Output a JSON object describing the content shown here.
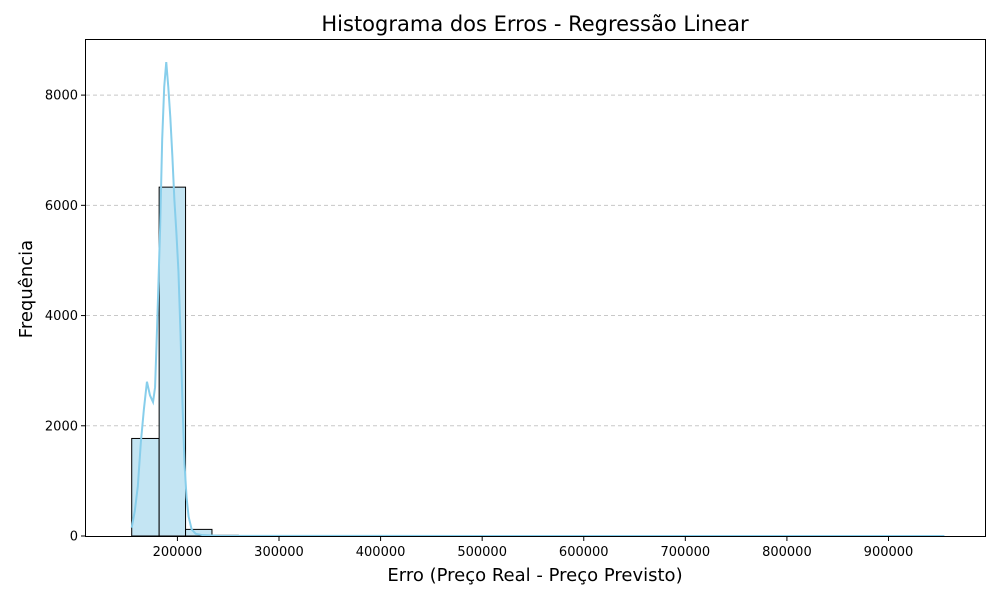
{
  "chart_data": {
    "type": "bar",
    "title": "Histograma dos Erros - Regressão Linear",
    "xlabel": "Erro (Preço Real - Preço Previsto)",
    "ylabel": "Frequência",
    "xlim": [
      110000,
      995000
    ],
    "ylim": [
      0,
      9000
    ],
    "grid": "y",
    "x_ticks": [
      200000,
      300000,
      400000,
      500000,
      600000,
      700000,
      800000,
      900000
    ],
    "x_tick_labels": [
      "200000",
      "300000",
      "400000",
      "500000",
      "600000",
      "700000",
      "800000",
      "900000"
    ],
    "y_ticks": [
      0,
      2000,
      4000,
      6000,
      8000
    ],
    "y_tick_labels": [
      "0",
      "2000",
      "4000",
      "6000",
      "8000"
    ],
    "bins": [
      {
        "x0": 155000,
        "x1": 182000,
        "count": 1770
      },
      {
        "x0": 182000,
        "x1": 208000,
        "count": 6330
      },
      {
        "x0": 208000,
        "x1": 234000,
        "count": 120
      },
      {
        "x0": 234000,
        "x1": 260000,
        "count": 12
      },
      {
        "x0": 260000,
        "x1": 286000,
        "count": 4
      },
      {
        "x0": 286000,
        "x1": 312000,
        "count": 2
      },
      {
        "x0": 312000,
        "x1": 338000,
        "count": 1
      },
      {
        "x0": 338000,
        "x1": 364000,
        "count": 1
      },
      {
        "x0": 364000,
        "x1": 390000,
        "count": 1
      },
      {
        "x0": 390000,
        "x1": 416000,
        "count": 1
      },
      {
        "x0": 416000,
        "x1": 442000,
        "count": 1
      },
      {
        "x0": 442000,
        "x1": 468000,
        "count": 1
      },
      {
        "x0": 468000,
        "x1": 494000,
        "count": 1
      },
      {
        "x0": 494000,
        "x1": 520000,
        "count": 1
      },
      {
        "x0": 520000,
        "x1": 546000,
        "count": 1
      },
      {
        "x0": 546000,
        "x1": 572000,
        "count": 1
      },
      {
        "x0": 572000,
        "x1": 598000,
        "count": 1
      },
      {
        "x0": 598000,
        "x1": 624000,
        "count": 1
      },
      {
        "x0": 624000,
        "x1": 650000,
        "count": 1
      },
      {
        "x0": 650000,
        "x1": 676000,
        "count": 1
      },
      {
        "x0": 676000,
        "x1": 702000,
        "count": 1
      },
      {
        "x0": 702000,
        "x1": 728000,
        "count": 1
      },
      {
        "x0": 728000,
        "x1": 754000,
        "count": 1
      },
      {
        "x0": 754000,
        "x1": 780000,
        "count": 1
      },
      {
        "x0": 780000,
        "x1": 806000,
        "count": 1
      },
      {
        "x0": 806000,
        "x1": 832000,
        "count": 1
      },
      {
        "x0": 832000,
        "x1": 858000,
        "count": 1
      },
      {
        "x0": 858000,
        "x1": 884000,
        "count": 1
      },
      {
        "x0": 884000,
        "x1": 910000,
        "count": 1
      },
      {
        "x0": 910000,
        "x1": 936000,
        "count": 1
      }
    ],
    "kde_curve": {
      "x": [
        155000,
        158000,
        161000,
        164000,
        167000,
        170000,
        173000,
        176000,
        178000,
        180000,
        183000,
        185000,
        187000,
        189000,
        191000,
        193000,
        195000,
        197000,
        199000,
        201000,
        203000,
        205000,
        207000,
        209000,
        211000,
        214000,
        218000,
        225000,
        240000,
        300000,
        500000,
        700000,
        955000
      ],
      "y": [
        150,
        450,
        900,
        1700,
        2300,
        2800,
        2550,
        2430,
        2700,
        3800,
        5600,
        7200,
        8150,
        8600,
        8150,
        7600,
        6900,
        6100,
        5500,
        4800,
        3700,
        2400,
        1300,
        700,
        350,
        120,
        40,
        15,
        5,
        2,
        1,
        1,
        1
      ]
    },
    "colors": {
      "bar_fill": "#c4e5f3",
      "bar_edge": "#000000",
      "kde_line": "#87ceeb",
      "grid": "#c8c8c8"
    }
  }
}
